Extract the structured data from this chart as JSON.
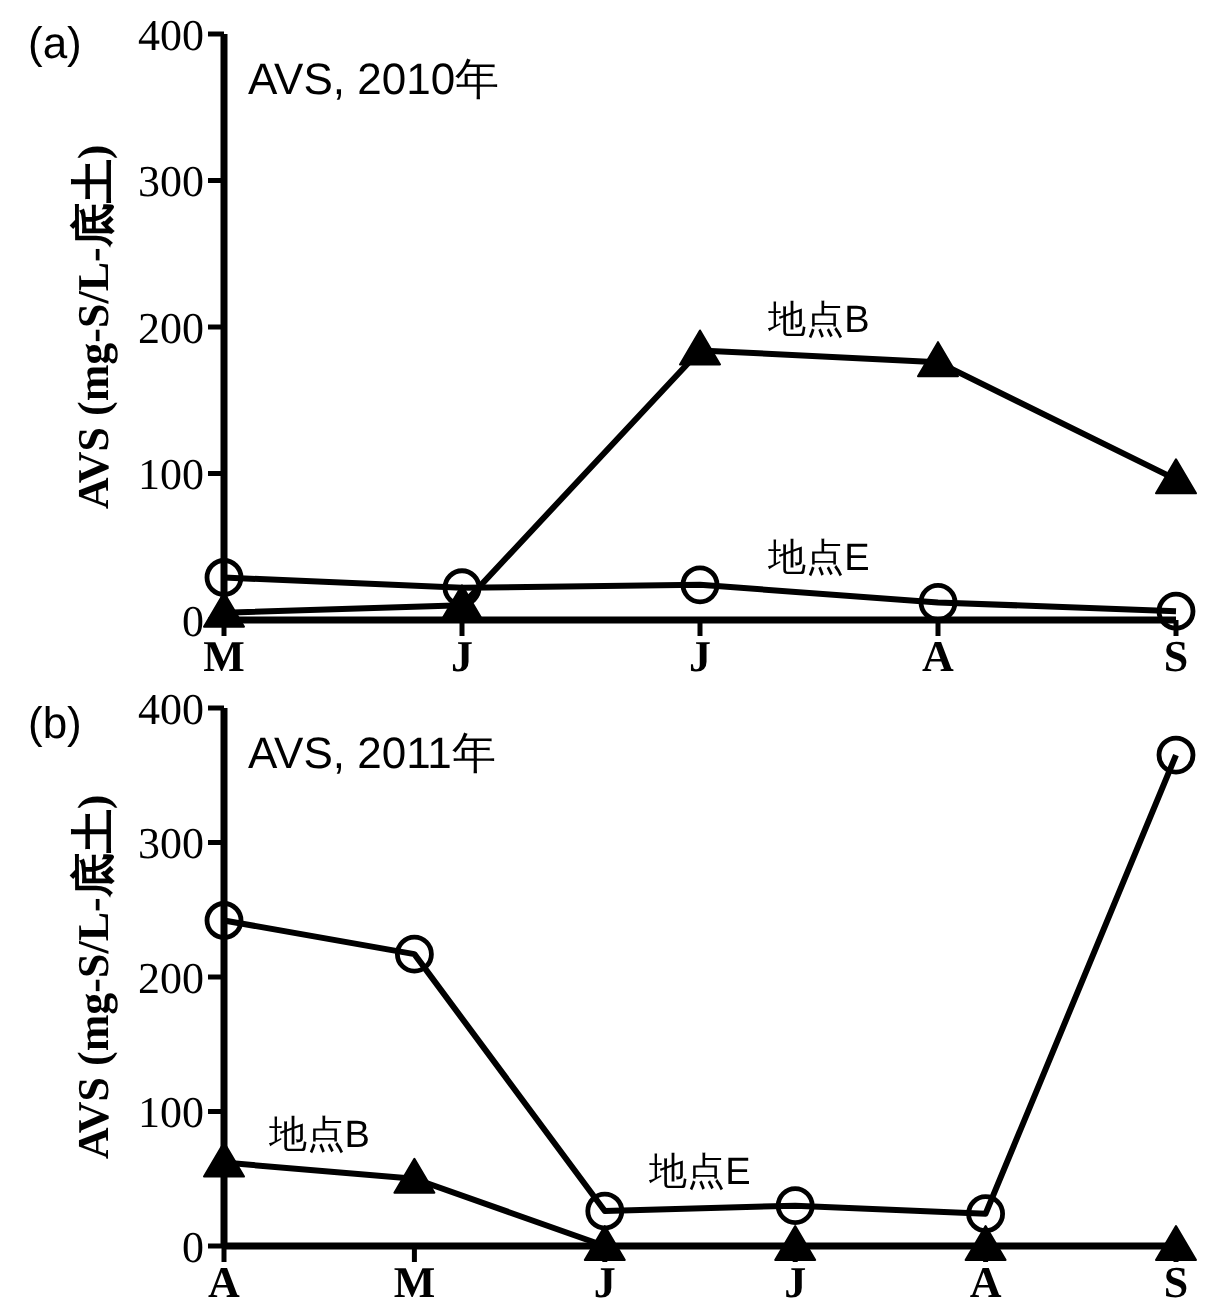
{
  "chart_data": [
    {
      "type": "line",
      "title": "AVS, 2010年",
      "ylabel": "AVS (mg-S/L-底土)",
      "categories": [
        "M",
        "J",
        "J",
        "A",
        "S"
      ],
      "ylim": [
        0,
        400
      ],
      "yticks": [
        0,
        100,
        200,
        300,
        400
      ],
      "series": [
        {
          "name": "地点B",
          "color": "#000000",
          "marker": "triangle",
          "values": [
            5,
            10,
            184,
            176,
            96
          ]
        },
        {
          "name": "地点E",
          "color": "#000000",
          "marker": "circle",
          "values": [
            29,
            22,
            24,
            12,
            6
          ]
        }
      ],
      "annotations": [
        "(a)"
      ]
    },
    {
      "type": "line",
      "title": "AVS, 2011年",
      "ylabel": "AVS (mg-S/L-底土)",
      "categories": [
        "A",
        "M",
        "J",
        "J",
        "A",
        "S"
      ],
      "ylim": [
        0,
        400
      ],
      "yticks": [
        0,
        100,
        200,
        300,
        400
      ],
      "series": [
        {
          "name": "地点B",
          "color": "#000000",
          "marker": "triangle",
          "values": [
            62,
            50,
            0,
            0,
            0,
            0
          ]
        },
        {
          "name": "地点E",
          "color": "#000000",
          "marker": "circle",
          "values": [
            242,
            217,
            26,
            30,
            24,
            365
          ]
        }
      ],
      "annotations": [
        "(b)"
      ]
    }
  ]
}
